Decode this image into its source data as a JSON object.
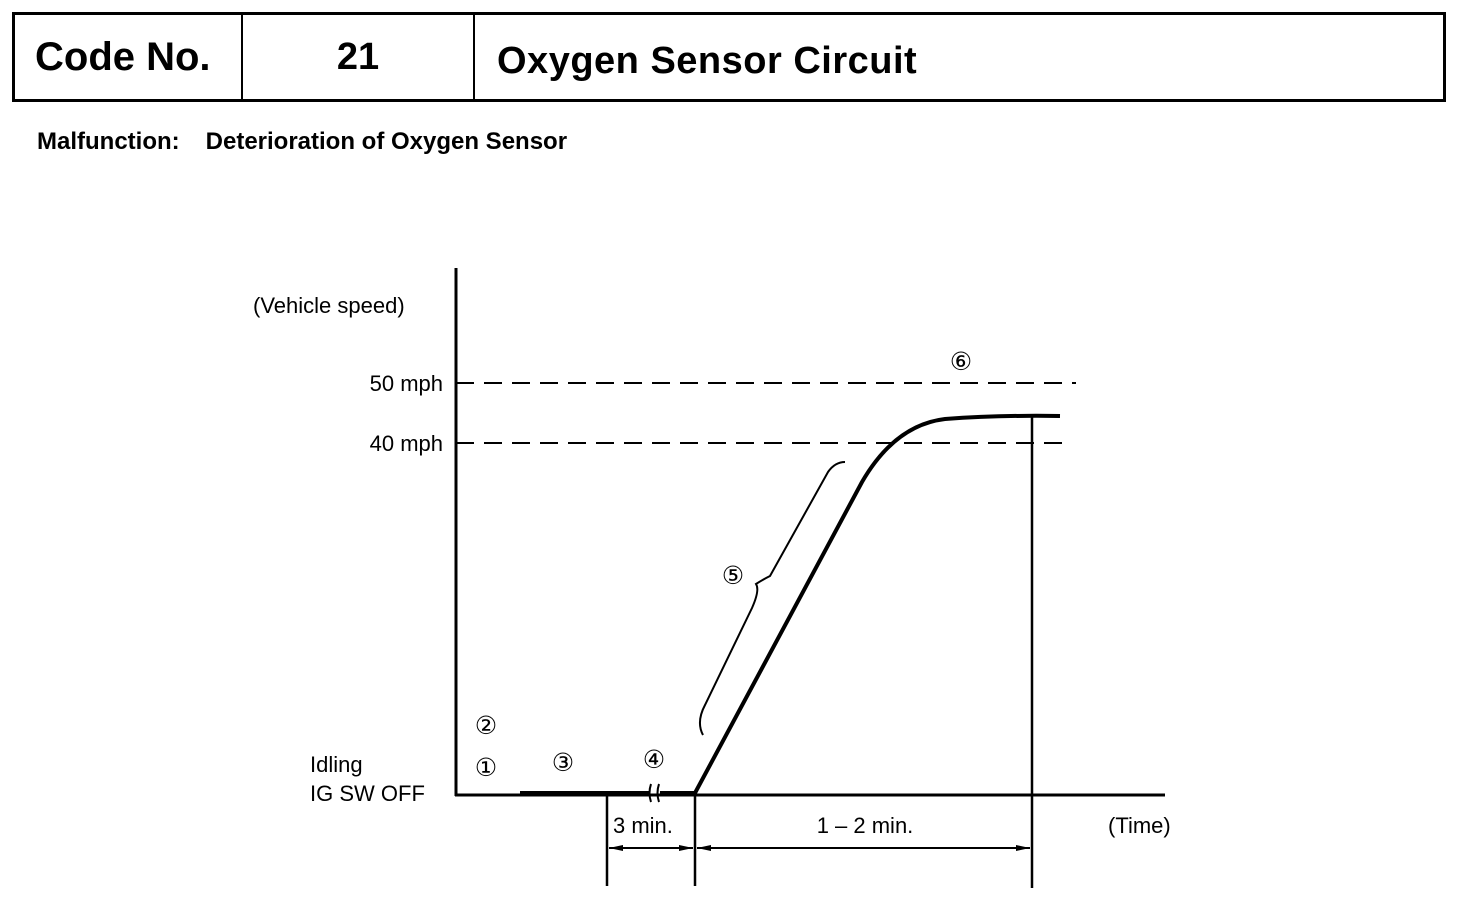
{
  "header": {
    "code_label": "Code No.",
    "code_value": "21",
    "title": "Oxygen Sensor Circuit"
  },
  "malfunction": {
    "label": "Malfunction:",
    "text": "Deterioration of Oxygen Sensor"
  },
  "diagram": {
    "y_axis_label": "(Vehicle speed)",
    "x_axis_label": "(Time)",
    "levels": [
      "50 mph",
      "40 mph"
    ],
    "baseline_labels": [
      "Idling",
      "IG SW OFF"
    ],
    "durations": [
      "3 min.",
      "1 – 2 min."
    ],
    "steps": [
      "①",
      "②",
      "③",
      "④",
      "⑤",
      "⑥"
    ]
  }
}
